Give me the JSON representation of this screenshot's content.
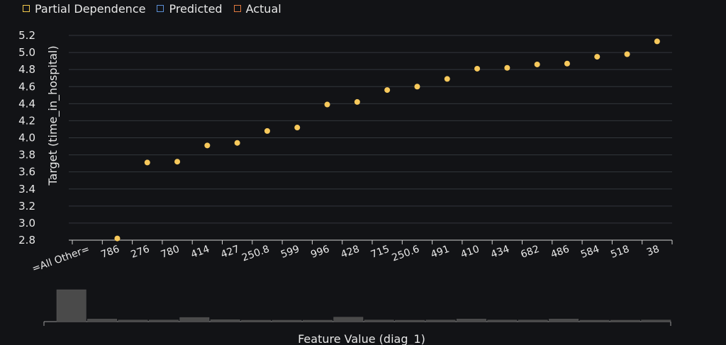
{
  "colors": {
    "background": "#121316",
    "grid": "#33363c",
    "axis": "#d0d0d0",
    "points": "#f7c95c",
    "bars": "#4a4a4a"
  },
  "legend": {
    "items": [
      {
        "label": "Partial Dependence",
        "color": "#f2c94c"
      },
      {
        "label": "Predicted",
        "color": "#5b8fd6"
      },
      {
        "label": "Actual",
        "color": "#e07a3f"
      }
    ]
  },
  "chart_data": [
    {
      "type": "scatter",
      "title": "",
      "ylabel": "Target (time_in_hospital)",
      "xlabel": "",
      "ylim": [
        2.8,
        5.2
      ],
      "yticks": [
        "2.8",
        "3.0",
        "3.2",
        "3.4",
        "3.6",
        "3.8",
        "4.0",
        "4.2",
        "4.4",
        "4.6",
        "4.8",
        "5.0",
        "5.2"
      ],
      "grid": true,
      "categories": [
        "=All Other=",
        "786",
        "276",
        "780",
        "414",
        "427",
        "250.8",
        "599",
        "996",
        "428",
        "715",
        "250.6",
        "491",
        "410",
        "434",
        "682",
        "486",
        "584",
        "518",
        "38"
      ],
      "series": [
        {
          "values": [
            null,
            2.82,
            3.71,
            3.72,
            3.91,
            3.94,
            4.08,
            4.12,
            4.39,
            4.42,
            4.56,
            4.6,
            4.69,
            4.81,
            4.82,
            4.86,
            4.87,
            4.95,
            4.98,
            5.13
          ]
        }
      ]
    },
    {
      "type": "bar",
      "xlabel": "Feature Value (diag_1)",
      "categories": [
        "=All Other=",
        "786",
        "276",
        "780",
        "414",
        "427",
        "250.8",
        "599",
        "996",
        "428",
        "715",
        "250.6",
        "491",
        "410",
        "434",
        "682",
        "486",
        "584",
        "518",
        "38"
      ],
      "values": [
        1.0,
        0.08,
        0.05,
        0.05,
        0.13,
        0.06,
        0.04,
        0.04,
        0.04,
        0.14,
        0.05,
        0.04,
        0.05,
        0.08,
        0.05,
        0.05,
        0.08,
        0.04,
        0.04,
        0.05
      ]
    }
  ]
}
